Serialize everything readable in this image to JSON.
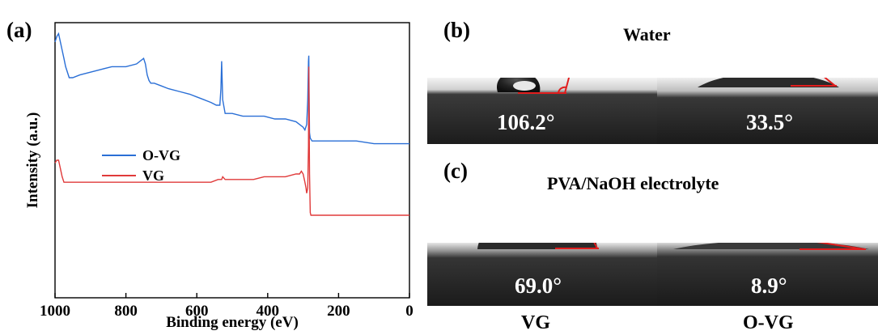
{
  "panels": {
    "a": "(a)",
    "b": "(b)",
    "c": "(c)"
  },
  "chart_data": {
    "type": "line",
    "xlabel": "Binding energy (eV)",
    "ylabel": "Intensity (a.u.)",
    "xlim": [
      1000,
      0
    ],
    "xticks": [
      "1000",
      "800",
      "600",
      "400",
      "200",
      "0"
    ],
    "xtick_values": [
      1000,
      800,
      600,
      400,
      200,
      0
    ],
    "legend_position": "center-left",
    "series": [
      {
        "name": "O-VG",
        "color": "#2a6fd6",
        "x": [
          1000,
          995,
          990,
          985,
          980,
          975,
          970,
          960,
          950,
          930,
          900,
          870,
          840,
          800,
          770,
          750,
          745,
          740,
          735,
          730,
          720,
          700,
          680,
          650,
          620,
          600,
          580,
          560,
          545,
          535,
          532,
          530,
          527,
          520,
          500,
          470,
          440,
          410,
          380,
          350,
          320,
          310,
          300,
          295,
          290,
          287,
          285,
          284,
          283,
          282,
          280,
          275,
          270,
          250,
          220,
          200,
          150,
          100,
          50,
          0
        ],
        "y": [
          0.93,
          0.95,
          0.96,
          0.93,
          0.9,
          0.87,
          0.84,
          0.8,
          0.8,
          0.81,
          0.82,
          0.83,
          0.84,
          0.84,
          0.85,
          0.87,
          0.85,
          0.81,
          0.79,
          0.78,
          0.78,
          0.77,
          0.76,
          0.75,
          0.74,
          0.73,
          0.72,
          0.71,
          0.7,
          0.7,
          0.76,
          0.86,
          0.72,
          0.67,
          0.67,
          0.66,
          0.66,
          0.66,
          0.65,
          0.65,
          0.64,
          0.63,
          0.62,
          0.61,
          0.63,
          0.72,
          0.86,
          0.88,
          0.74,
          0.6,
          0.58,
          0.57,
          0.57,
          0.57,
          0.57,
          0.57,
          0.57,
          0.56,
          0.56,
          0.56
        ]
      },
      {
        "name": "VG",
        "color": "#e03a3a",
        "x": [
          1000,
          995,
          990,
          985,
          980,
          975,
          970,
          960,
          950,
          930,
          900,
          870,
          840,
          800,
          770,
          750,
          720,
          700,
          680,
          650,
          620,
          600,
          580,
          560,
          540,
          530,
          527,
          520,
          500,
          470,
          440,
          410,
          380,
          350,
          320,
          310,
          305,
          300,
          295,
          292,
          290,
          287,
          285,
          284,
          283,
          282,
          280,
          278,
          275,
          270,
          250,
          220,
          200,
          150,
          100,
          50,
          0
        ],
        "y": [
          0.49,
          0.5,
          0.5,
          0.47,
          0.44,
          0.42,
          0.42,
          0.42,
          0.42,
          0.42,
          0.42,
          0.42,
          0.42,
          0.42,
          0.42,
          0.42,
          0.42,
          0.42,
          0.42,
          0.42,
          0.42,
          0.42,
          0.42,
          0.42,
          0.43,
          0.43,
          0.44,
          0.43,
          0.43,
          0.43,
          0.43,
          0.44,
          0.44,
          0.44,
          0.45,
          0.45,
          0.46,
          0.45,
          0.42,
          0.4,
          0.38,
          0.4,
          0.55,
          0.84,
          0.68,
          0.45,
          0.31,
          0.3,
          0.3,
          0.3,
          0.3,
          0.3,
          0.3,
          0.3,
          0.3,
          0.3,
          0.3
        ]
      }
    ]
  },
  "contact_angle": {
    "b_title": "Water",
    "c_title": "PVA/NaOH electrolyte",
    "b_vg_angle": "106.2°",
    "b_ovg_angle": "33.5°",
    "c_vg_angle": "69.0°",
    "c_ovg_angle": "8.9°",
    "sample_vg": "VG",
    "sample_ovg": "O-VG",
    "angle_line_color": "#e11d1d"
  }
}
